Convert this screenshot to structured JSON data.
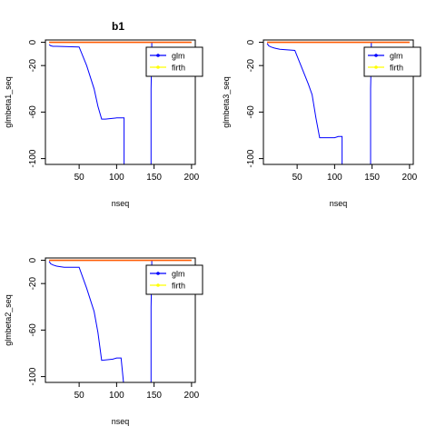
{
  "figure_title": "b1",
  "colors": {
    "glm": "#0000ff",
    "firth": "#ffff00",
    "firth_line": "#ff5a00",
    "axis": "#000000"
  },
  "chart_data": [
    {
      "type": "line",
      "title": "b1",
      "xlabel": "nseq",
      "ylabel": "glmbeta1_seq",
      "xlim": [
        5,
        205
      ],
      "ylim": [
        -105,
        2
      ],
      "xticks": [
        50,
        100,
        150,
        200
      ],
      "yticks": [
        0,
        -20,
        -60,
        -100
      ],
      "legend": {
        "position": "top-right",
        "entries": [
          "glm",
          "firth"
        ]
      },
      "series": [
        {
          "name": "glm",
          "color": "#0000ff",
          "x": [
            10,
            12,
            15,
            20,
            50,
            60,
            70,
            75,
            80,
            85,
            100,
            105,
            110,
            110,
            146,
            146,
            147,
            147
          ],
          "y": [
            -2,
            -3,
            -3.5,
            -3.5,
            -4,
            -20,
            -40,
            -55,
            -66,
            -66,
            -65,
            -65,
            -65,
            -110,
            -110,
            -40,
            -10,
            0
          ]
        },
        {
          "name": "firth",
          "color": "#ff5a00",
          "x": [
            10,
            200
          ],
          "y": [
            0,
            0
          ]
        }
      ]
    },
    {
      "type": "line",
      "title": "",
      "xlabel": "nseq",
      "ylabel": "glmbeta3_seq",
      "xlim": [
        5,
        205
      ],
      "ylim": [
        -105,
        2
      ],
      "xticks": [
        50,
        100,
        150,
        200
      ],
      "yticks": [
        0,
        -20,
        -60,
        -100
      ],
      "legend": {
        "position": "top-right",
        "entries": [
          "glm",
          "firth"
        ]
      },
      "series": [
        {
          "name": "glm",
          "color": "#0000ff",
          "x": [
            10,
            12,
            15,
            20,
            27,
            47,
            55,
            65,
            70,
            75,
            80,
            100,
            105,
            110,
            110,
            148,
            148,
            149,
            149
          ],
          "y": [
            -1,
            -3,
            -4,
            -5,
            -6,
            -7,
            -20,
            -36,
            -45,
            -65,
            -82,
            -82,
            -81,
            -81,
            -110,
            -110,
            -40,
            -10,
            0
          ]
        },
        {
          "name": "firth",
          "color": "#ff5a00",
          "x": [
            10,
            200
          ],
          "y": [
            0,
            0
          ]
        }
      ]
    },
    {
      "type": "line",
      "title": "",
      "xlabel": "nseq",
      "ylabel": "glmbeta2_seq",
      "xlim": [
        5,
        205
      ],
      "ylim": [
        -105,
        2
      ],
      "xticks": [
        50,
        100,
        150,
        200
      ],
      "yticks": [
        0,
        -20,
        -60,
        -100
      ],
      "legend": {
        "position": "top-right",
        "entries": [
          "glm",
          "firth"
        ]
      },
      "series": [
        {
          "name": "glm",
          "color": "#0000ff",
          "x": [
            10,
            12,
            15,
            20,
            30,
            45,
            50,
            60,
            70,
            75,
            80,
            95,
            100,
            103,
            106,
            110,
            146,
            146,
            147,
            147
          ],
          "y": [
            -1,
            -3,
            -4,
            -5,
            -6,
            -6,
            -6,
            -24,
            -44,
            -62,
            -86,
            -85,
            -84,
            -84,
            -84,
            -110,
            -110,
            -40,
            -10,
            0
          ]
        },
        {
          "name": "firth",
          "color": "#ff5a00",
          "x": [
            10,
            200
          ],
          "y": [
            0,
            0
          ]
        }
      ]
    }
  ]
}
